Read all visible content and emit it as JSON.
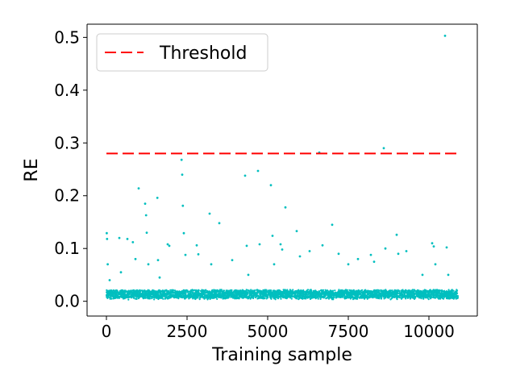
{
  "chart_data": {
    "type": "scatter",
    "title": "",
    "xlabel": "Training sample",
    "ylabel": "RE",
    "xlim": [
      -600,
      11500
    ],
    "ylim": [
      -0.028,
      0.525
    ],
    "xticks": [
      0,
      2500,
      5000,
      7500,
      10000
    ],
    "xtick_labels": [
      "0",
      "2500",
      "5000",
      "7500",
      "10000"
    ],
    "yticks": [
      0.0,
      0.1,
      0.2,
      0.3,
      0.4,
      0.5
    ],
    "ytick_labels": [
      "0.0",
      "0.1",
      "0.2",
      "0.3",
      "0.4",
      "0.5"
    ],
    "grid": false,
    "legend": {
      "position": "top-left",
      "entries": [
        {
          "label": "Threshold",
          "style": "dashed-line",
          "color": "#ff0000"
        }
      ]
    },
    "threshold": {
      "name": "Threshold",
      "value": 0.28,
      "x_range": [
        0,
        10900
      ],
      "color": "#ff0000"
    },
    "series": [
      {
        "color": "#00bfbf",
        "x_range": [
          0,
          10900
        ],
        "baseline_band": [
          0.003,
          0.022
        ],
        "points": [
          {
            "x": 10,
            "y": 0.129
          },
          {
            "x": 20,
            "y": 0.118
          },
          {
            "x": 40,
            "y": 0.07
          },
          {
            "x": 100,
            "y": 0.04
          },
          {
            "x": 400,
            "y": 0.12
          },
          {
            "x": 450,
            "y": 0.055
          },
          {
            "x": 650,
            "y": 0.118
          },
          {
            "x": 820,
            "y": 0.112
          },
          {
            "x": 900,
            "y": 0.08
          },
          {
            "x": 1000,
            "y": 0.214
          },
          {
            "x": 1200,
            "y": 0.185
          },
          {
            "x": 1230,
            "y": 0.163
          },
          {
            "x": 1250,
            "y": 0.13
          },
          {
            "x": 1300,
            "y": 0.07
          },
          {
            "x": 1580,
            "y": 0.196
          },
          {
            "x": 1600,
            "y": 0.078
          },
          {
            "x": 1650,
            "y": 0.045
          },
          {
            "x": 1900,
            "y": 0.108
          },
          {
            "x": 1950,
            "y": 0.105
          },
          {
            "x": 2330,
            "y": 0.268
          },
          {
            "x": 2350,
            "y": 0.24
          },
          {
            "x": 2370,
            "y": 0.181
          },
          {
            "x": 2400,
            "y": 0.129
          },
          {
            "x": 2450,
            "y": 0.088
          },
          {
            "x": 2800,
            "y": 0.106
          },
          {
            "x": 2850,
            "y": 0.089
          },
          {
            "x": 3200,
            "y": 0.166
          },
          {
            "x": 3250,
            "y": 0.07
          },
          {
            "x": 3500,
            "y": 0.148
          },
          {
            "x": 3900,
            "y": 0.078
          },
          {
            "x": 4300,
            "y": 0.238
          },
          {
            "x": 4350,
            "y": 0.105
          },
          {
            "x": 4400,
            "y": 0.05
          },
          {
            "x": 4700,
            "y": 0.247
          },
          {
            "x": 4750,
            "y": 0.108
          },
          {
            "x": 5100,
            "y": 0.22
          },
          {
            "x": 5150,
            "y": 0.124
          },
          {
            "x": 5200,
            "y": 0.07
          },
          {
            "x": 5400,
            "y": 0.108
          },
          {
            "x": 5450,
            "y": 0.098
          },
          {
            "x": 5550,
            "y": 0.178
          },
          {
            "x": 5900,
            "y": 0.133
          },
          {
            "x": 6000,
            "y": 0.085
          },
          {
            "x": 6300,
            "y": 0.095
          },
          {
            "x": 6600,
            "y": 0.282
          },
          {
            "x": 6700,
            "y": 0.106
          },
          {
            "x": 7000,
            "y": 0.145
          },
          {
            "x": 7200,
            "y": 0.09
          },
          {
            "x": 7500,
            "y": 0.07
          },
          {
            "x": 7800,
            "y": 0.08
          },
          {
            "x": 8200,
            "y": 0.088
          },
          {
            "x": 8300,
            "y": 0.075
          },
          {
            "x": 8600,
            "y": 0.29
          },
          {
            "x": 8650,
            "y": 0.1
          },
          {
            "x": 9000,
            "y": 0.126
          },
          {
            "x": 9050,
            "y": 0.09
          },
          {
            "x": 9300,
            "y": 0.095
          },
          {
            "x": 9800,
            "y": 0.05
          },
          {
            "x": 10100,
            "y": 0.11
          },
          {
            "x": 10150,
            "y": 0.104
          },
          {
            "x": 10200,
            "y": 0.07
          },
          {
            "x": 10500,
            "y": 0.503
          },
          {
            "x": 10550,
            "y": 0.102
          },
          {
            "x": 10600,
            "y": 0.05
          }
        ]
      }
    ]
  }
}
